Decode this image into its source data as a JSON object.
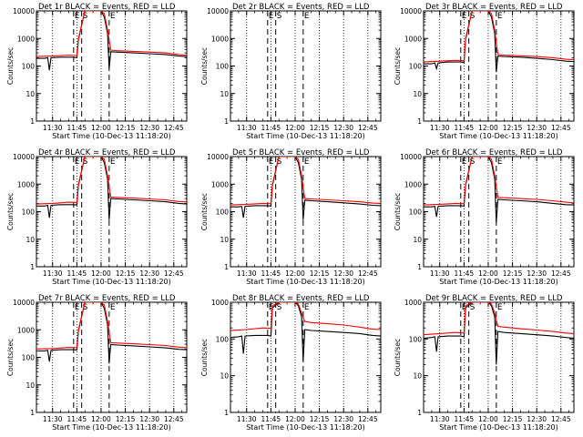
{
  "chart_data": [
    {
      "type": "line",
      "title": "Det 1r  BLACK = Events, RED = LLD",
      "xlabel": "Start Time (10-Dec-13 11:18:20)",
      "ylabel": "Counts/sec",
      "xlim": [
        "11:20",
        "12:53"
      ],
      "ylim": [
        1,
        10000
      ],
      "yscale": "log",
      "xticks": [
        "11:30",
        "11:45",
        "12:00",
        "12:15",
        "12:30",
        "12:45"
      ],
      "yticks": [
        "1",
        "10",
        "100",
        "1000",
        "10000"
      ],
      "markers": [
        "E",
        "S",
        "E"
      ],
      "series": [
        {
          "color": "#000000",
          "x": [
            "11:20",
            "11:25",
            "11:27",
            "11:28",
            "11:29",
            "11:35",
            "11:43",
            "11:45",
            "11:46",
            "11:50",
            "11:55",
            "12:00",
            "12:02",
            "12:04",
            "12:05",
            "12:06",
            "12:10",
            "12:20",
            "12:30",
            "12:40",
            "12:48",
            "12:53"
          ],
          "y": [
            190,
            190,
            200,
            70,
            200,
            210,
            210,
            200,
            900,
            10000,
            10000,
            10000,
            6000,
            1500,
            80,
            330,
            320,
            300,
            280,
            260,
            230,
            220
          ]
        },
        {
          "color": "#ff0000",
          "x": [
            "11:20",
            "11:30",
            "11:40",
            "11:45",
            "11:46",
            "11:50",
            "11:55",
            "12:00",
            "12:02",
            "12:04",
            "12:06",
            "12:10",
            "12:20",
            "12:30",
            "12:40",
            "12:48",
            "12:53"
          ],
          "y": [
            220,
            230,
            250,
            240,
            1000,
            10000,
            10000,
            10000,
            8000,
            2000,
            380,
            360,
            340,
            320,
            300,
            260,
            250
          ]
        }
      ]
    },
    {
      "type": "line",
      "title": "Det 2r  BLACK = Events, RED = LLD",
      "xlabel": "Start Time (10-Dec-13 11:18:20)",
      "ylabel": "Counts/sec",
      "xlim": [
        "11:20",
        "12:53"
      ],
      "ylim": [
        1,
        10000
      ],
      "yscale": "log",
      "xticks": [
        "11:30",
        "11:45",
        "12:00",
        "12:15",
        "12:30",
        "12:45"
      ],
      "yticks": [
        "1",
        "10",
        "100",
        "1000",
        "10000"
      ],
      "markers": [
        "E",
        "S",
        "E"
      ],
      "series": []
    },
    {
      "type": "line",
      "title": "Det 3r  BLACK = Events, RED = LLD",
      "xlabel": "Start Time (10-Dec-13 11:18:20)",
      "ylabel": "Counts/sec",
      "xlim": [
        "11:20",
        "12:53"
      ],
      "ylim": [
        1,
        10000
      ],
      "yscale": "log",
      "xticks": [
        "11:30",
        "11:45",
        "12:00",
        "12:15",
        "12:30",
        "12:45"
      ],
      "yticks": [
        "1",
        "10",
        "100",
        "1000",
        "10000"
      ],
      "markers": [
        "E",
        "S",
        "E"
      ],
      "series": [
        {
          "color": "#000000",
          "x": [
            "11:20",
            "11:25",
            "11:27",
            "11:28",
            "11:29",
            "11:35",
            "11:43",
            "11:45",
            "11:46",
            "11:50",
            "11:55",
            "12:00",
            "12:02",
            "12:04",
            "12:05",
            "12:06",
            "12:10",
            "12:20",
            "12:30",
            "12:40",
            "12:48",
            "12:53"
          ],
          "y": [
            120,
            120,
            130,
            80,
            130,
            140,
            140,
            135,
            900,
            10000,
            10000,
            10000,
            6000,
            1500,
            60,
            230,
            220,
            210,
            190,
            170,
            150,
            145
          ]
        },
        {
          "color": "#ff0000",
          "x": [
            "11:20",
            "11:30",
            "11:40",
            "11:45",
            "11:46",
            "11:50",
            "11:55",
            "12:00",
            "12:02",
            "12:04",
            "12:06",
            "12:10",
            "12:20",
            "12:30",
            "12:40",
            "12:48",
            "12:53"
          ],
          "y": [
            140,
            150,
            160,
            155,
            1000,
            10000,
            10000,
            10000,
            8000,
            2000,
            260,
            250,
            235,
            220,
            200,
            175,
            170
          ]
        }
      ]
    },
    {
      "type": "line",
      "title": "Det 4r  BLACK = Events, RED = LLD",
      "xlabel": "Start Time (10-Dec-13 11:18:20)",
      "ylabel": "Counts/sec",
      "xlim": [
        "11:20",
        "12:53"
      ],
      "ylim": [
        1,
        10000
      ],
      "yscale": "log",
      "xticks": [
        "11:30",
        "11:45",
        "12:00",
        "12:15",
        "12:30",
        "12:45"
      ],
      "yticks": [
        "1",
        "10",
        "100",
        "1000",
        "10000"
      ],
      "markers": [
        "E",
        "S",
        "E"
      ],
      "series": [
        {
          "color": "#000000",
          "x": [
            "11:20",
            "11:25",
            "11:27",
            "11:28",
            "11:29",
            "11:35",
            "11:43",
            "11:45",
            "11:46",
            "11:50",
            "11:55",
            "12:00",
            "12:02",
            "12:04",
            "12:05",
            "12:06",
            "12:10",
            "12:20",
            "12:30",
            "12:40",
            "12:48",
            "12:53"
          ],
          "y": [
            160,
            160,
            170,
            60,
            170,
            180,
            180,
            175,
            900,
            10000,
            10000,
            10000,
            6000,
            1500,
            50,
            300,
            290,
            270,
            250,
            230,
            200,
            190
          ]
        },
        {
          "color": "#ff0000",
          "x": [
            "11:20",
            "11:30",
            "11:40",
            "11:45",
            "11:46",
            "11:50",
            "11:55",
            "12:00",
            "12:02",
            "12:04",
            "12:06",
            "12:10",
            "12:20",
            "12:30",
            "12:40",
            "12:48",
            "12:53"
          ],
          "y": [
            190,
            200,
            220,
            215,
            1000,
            10000,
            10000,
            10000,
            8000,
            2000,
            340,
            330,
            310,
            290,
            270,
            235,
            225
          ]
        }
      ]
    },
    {
      "type": "line",
      "title": "Det 5r  BLACK = Events, RED = LLD",
      "xlabel": "Start Time (10-Dec-13 11:18:20)",
      "ylabel": "Counts/sec",
      "xlim": [
        "11:20",
        "12:53"
      ],
      "ylim": [
        1,
        10000
      ],
      "yscale": "log",
      "xticks": [
        "11:30",
        "11:45",
        "12:00",
        "12:15",
        "12:30",
        "12:45"
      ],
      "yticks": [
        "1",
        "10",
        "100",
        "1000",
        "10000"
      ],
      "markers": [
        "E",
        "S",
        "E"
      ],
      "series": [
        {
          "color": "#000000",
          "x": [
            "11:20",
            "11:25",
            "11:27",
            "11:28",
            "11:29",
            "11:35",
            "11:43",
            "11:45",
            "11:46",
            "11:50",
            "11:55",
            "12:00",
            "12:02",
            "12:04",
            "12:05",
            "12:06",
            "12:10",
            "12:20",
            "12:30",
            "12:40",
            "12:48",
            "12:53"
          ],
          "y": [
            150,
            150,
            155,
            60,
            155,
            165,
            165,
            160,
            900,
            10000,
            10000,
            10000,
            6000,
            1500,
            50,
            260,
            250,
            230,
            210,
            190,
            170,
            165
          ]
        },
        {
          "color": "#ff0000",
          "x": [
            "11:20",
            "11:30",
            "11:40",
            "11:45",
            "11:46",
            "11:50",
            "11:55",
            "12:00",
            "12:02",
            "12:04",
            "12:06",
            "12:10",
            "12:20",
            "12:30",
            "12:40",
            "12:48",
            "12:53"
          ],
          "y": [
            175,
            185,
            200,
            195,
            1000,
            10000,
            10000,
            10000,
            8000,
            2000,
            300,
            290,
            270,
            250,
            230,
            205,
            200
          ]
        }
      ]
    },
    {
      "type": "line",
      "title": "Det 6r  BLACK = Events, RED = LLD",
      "xlabel": "Start Time (10-Dec-13 11:18:20)",
      "ylabel": "Counts/sec",
      "xlim": [
        "11:20",
        "12:53"
      ],
      "ylim": [
        1,
        10000
      ],
      "yscale": "log",
      "xticks": [
        "11:30",
        "11:45",
        "12:00",
        "12:15",
        "12:30",
        "12:45"
      ],
      "yticks": [
        "1",
        "10",
        "100",
        "1000",
        "10000"
      ],
      "markers": [
        "E",
        "S",
        "E"
      ],
      "series": [
        {
          "color": "#000000",
          "x": [
            "11:20",
            "11:25",
            "11:27",
            "11:28",
            "11:29",
            "11:35",
            "11:43",
            "11:45",
            "11:46",
            "11:50",
            "11:55",
            "12:00",
            "12:02",
            "12:04",
            "12:05",
            "12:06",
            "12:10",
            "12:20",
            "12:30",
            "12:40",
            "12:48",
            "12:53"
          ],
          "y": [
            150,
            150,
            155,
            65,
            155,
            165,
            165,
            160,
            900,
            10000,
            10000,
            10000,
            6000,
            1500,
            40,
            280,
            270,
            250,
            230,
            200,
            180,
            175
          ]
        },
        {
          "color": "#ff0000",
          "x": [
            "11:20",
            "11:30",
            "11:40",
            "11:45",
            "11:46",
            "11:50",
            "11:55",
            "12:00",
            "12:02",
            "12:04",
            "12:06",
            "12:10",
            "12:20",
            "12:30",
            "12:40",
            "12:48",
            "12:53"
          ],
          "y": [
            175,
            185,
            200,
            195,
            1000,
            10000,
            10000,
            10000,
            8000,
            2000,
            330,
            320,
            300,
            280,
            250,
            220,
            210
          ]
        }
      ]
    },
    {
      "type": "line",
      "title": "Det 7r  BLACK = Events, RED = LLD",
      "xlabel": "Start Time (10-Dec-13 11:18:20)",
      "ylabel": "Counts/sec",
      "xlim": [
        "11:20",
        "12:53"
      ],
      "ylim": [
        1,
        10000
      ],
      "yscale": "log",
      "xticks": [
        "11:30",
        "11:45",
        "12:00",
        "12:15",
        "12:30",
        "12:45"
      ],
      "yticks": [
        "1",
        "10",
        "100",
        "1000",
        "10000"
      ],
      "markers": [
        "E",
        "S",
        "E"
      ],
      "series": [
        {
          "color": "#000000",
          "x": [
            "11:20",
            "11:25",
            "11:27",
            "11:28",
            "11:29",
            "11:35",
            "11:43",
            "11:45",
            "11:46",
            "11:50",
            "11:55",
            "12:00",
            "12:02",
            "12:04",
            "12:05",
            "12:06",
            "12:10",
            "12:20",
            "12:30",
            "12:40",
            "12:48",
            "12:53"
          ],
          "y": [
            170,
            170,
            180,
            70,
            180,
            190,
            190,
            185,
            900,
            10000,
            10000,
            10000,
            6000,
            1500,
            60,
            290,
            280,
            260,
            240,
            220,
            195,
            190
          ]
        },
        {
          "color": "#ff0000",
          "x": [
            "11:20",
            "11:30",
            "11:40",
            "11:45",
            "11:46",
            "11:50",
            "11:55",
            "12:00",
            "12:02",
            "12:04",
            "12:06",
            "12:10",
            "12:20",
            "12:30",
            "12:40",
            "12:48",
            "12:53"
          ],
          "y": [
            200,
            210,
            230,
            225,
            1000,
            10000,
            10000,
            10000,
            8000,
            2000,
            340,
            330,
            310,
            290,
            270,
            235,
            225
          ]
        }
      ]
    },
    {
      "type": "line",
      "title": "Det 8r  BLACK = Events, RED = LLD",
      "xlabel": "Start Time (10-Dec-13 11:18:20)",
      "ylabel": "Counts/sec",
      "xlim": [
        "11:20",
        "12:53"
      ],
      "ylim": [
        1,
        1000
      ],
      "yscale": "log",
      "xticks": [
        "11:30",
        "11:45",
        "12:00",
        "12:15",
        "12:30",
        "12:45"
      ],
      "yticks": [
        "1",
        "10",
        "100",
        "1000"
      ],
      "markers": [
        "E",
        "S",
        "E"
      ],
      "series": [
        {
          "color": "#000000",
          "x": [
            "11:20",
            "11:25",
            "11:27",
            "11:28",
            "11:29",
            "11:35",
            "11:43",
            "11:45",
            "11:46",
            "11:50",
            "11:55",
            "12:00",
            "12:02",
            "12:04",
            "12:05",
            "12:06",
            "12:10",
            "12:20",
            "12:30",
            "12:40",
            "12:48",
            "12:53"
          ],
          "y": [
            110,
            115,
            120,
            40,
            120,
            125,
            125,
            120,
            700,
            1000,
            1000,
            1000,
            800,
            400,
            25,
            180,
            170,
            160,
            150,
            140,
            125,
            120
          ]
        },
        {
          "color": "#ff0000",
          "x": [
            "11:20",
            "11:30",
            "11:40",
            "11:45",
            "11:46",
            "11:50",
            "11:55",
            "12:00",
            "12:02",
            "12:04",
            "12:06",
            "12:10",
            "12:20",
            "12:30",
            "12:40",
            "12:48",
            "12:53"
          ],
          "y": [
            170,
            180,
            200,
            195,
            800,
            1000,
            1000,
            1000,
            900,
            500,
            300,
            280,
            260,
            240,
            210,
            185,
            180
          ]
        }
      ]
    },
    {
      "type": "line",
      "title": "Det 9r  BLACK = Events, RED = LLD",
      "xlabel": "Start Time (10-Dec-13 11:18:20)",
      "ylabel": "Counts/sec",
      "xlim": [
        "11:20",
        "12:53"
      ],
      "ylim": [
        1,
        1000
      ],
      "yscale": "log",
      "xticks": [
        "11:30",
        "11:45",
        "12:00",
        "12:15",
        "12:30",
        "12:45"
      ],
      "yticks": [
        "1",
        "10",
        "100",
        "1000"
      ],
      "markers": [
        "E",
        "S",
        "E"
      ],
      "series": [
        {
          "color": "#000000",
          "x": [
            "11:20",
            "11:25",
            "11:27",
            "11:28",
            "11:29",
            "11:35",
            "11:43",
            "11:45",
            "11:46",
            "11:50",
            "11:55",
            "12:00",
            "12:02",
            "12:04",
            "12:05",
            "12:06",
            "12:10",
            "12:20",
            "12:30",
            "12:40",
            "12:48",
            "12:53"
          ],
          "y": [
            105,
            110,
            115,
            45,
            115,
            120,
            120,
            115,
            700,
            1000,
            1000,
            1000,
            800,
            400,
            20,
            160,
            150,
            140,
            130,
            120,
            110,
            105
          ]
        },
        {
          "color": "#ff0000",
          "x": [
            "11:20",
            "11:30",
            "11:40",
            "11:45",
            "11:46",
            "11:50",
            "11:55",
            "12:00",
            "12:02",
            "12:04",
            "12:06",
            "12:10",
            "12:20",
            "12:30",
            "12:40",
            "12:48",
            "12:53"
          ],
          "y": [
            130,
            140,
            150,
            145,
            800,
            1000,
            1000,
            1000,
            900,
            500,
            220,
            210,
            190,
            175,
            160,
            145,
            140
          ]
        }
      ]
    }
  ]
}
